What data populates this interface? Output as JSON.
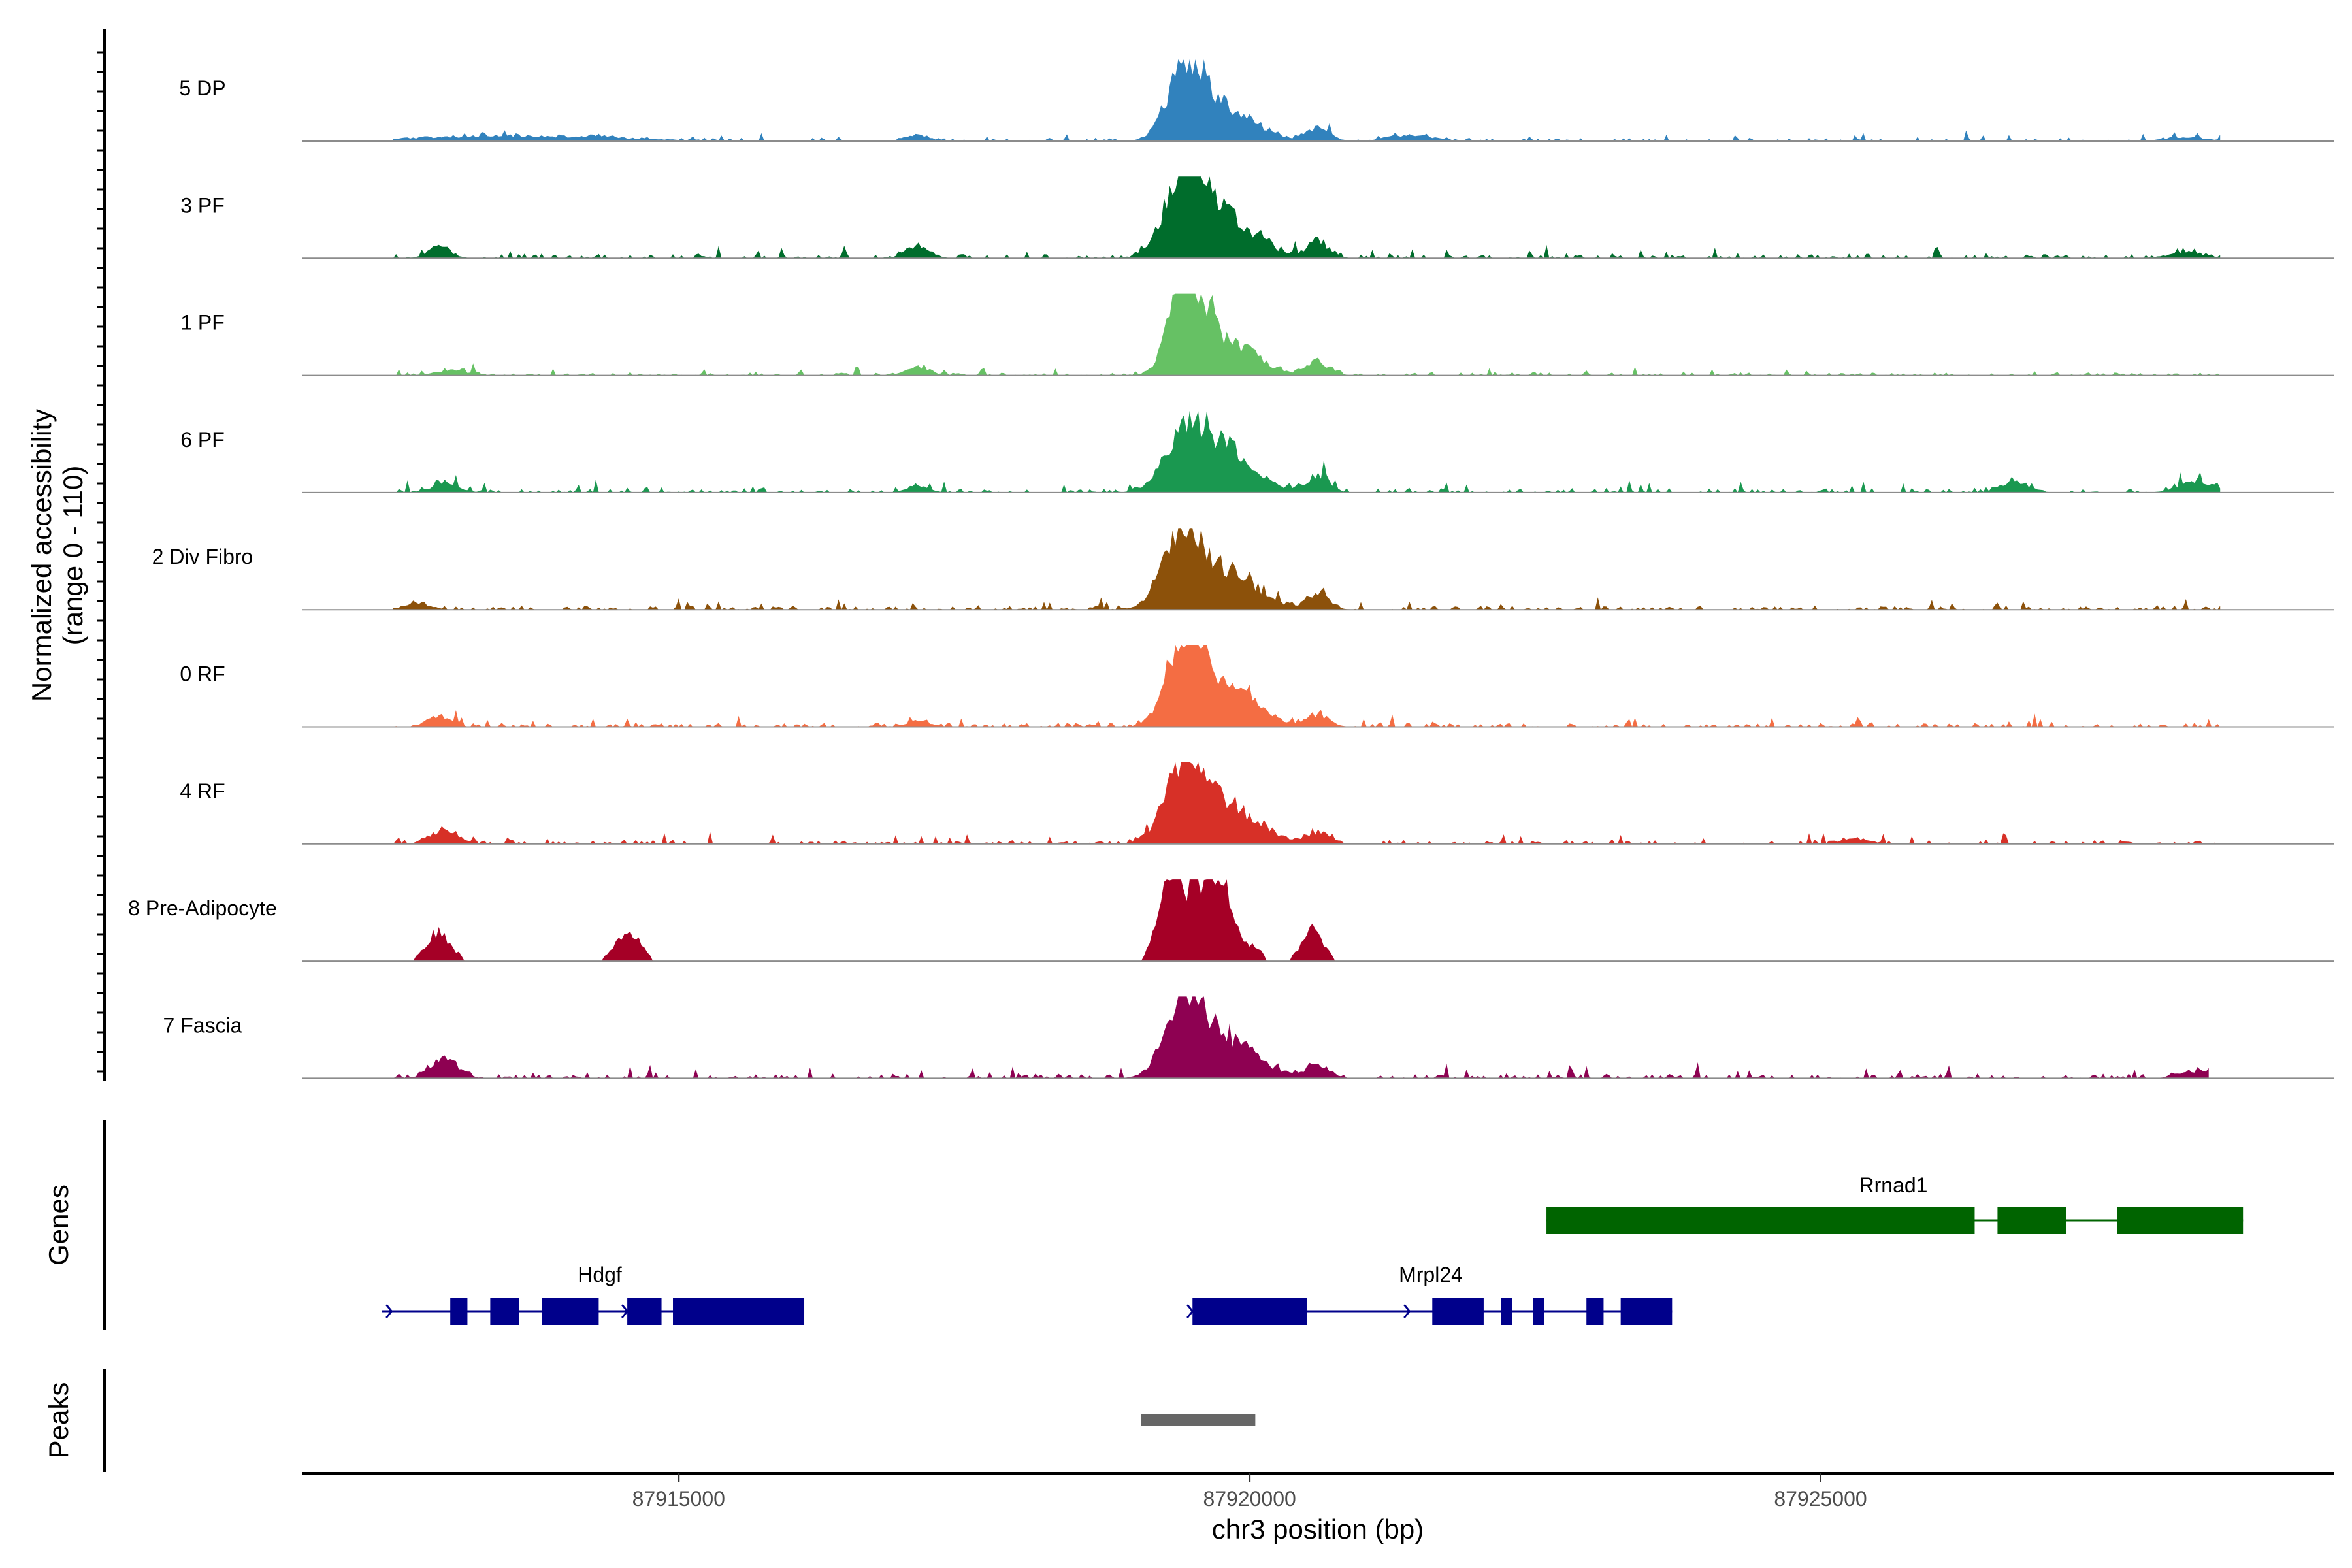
{
  "chart_data": {
    "type": "area",
    "chromosome": "chr3",
    "xlabel": "chr3 position (bp)",
    "xlim": [
      87911700,
      87929500
    ],
    "x_ticks": [
      87915000,
      87920000,
      87925000
    ],
    "x_tick_labels": [
      "87915000",
      "87920000",
      "87925000"
    ],
    "ylabel_line1": "Normalized accessibility",
    "ylabel_line2": "(range 0 - 110)",
    "ylim": [
      0,
      110
    ],
    "genes_label": "Genes",
    "peaks_label": "Peaks",
    "tracks": [
      {
        "name": "5 DP",
        "color": "#3182bd",
        "peaks": [
          [
            87919450,
            100,
            160
          ],
          [
            87919800,
            40,
            250
          ],
          [
            87920600,
            18,
            100
          ],
          [
            87913600,
            7,
            900
          ],
          [
            87917100,
            9,
            100
          ],
          [
            87921400,
            8,
            200
          ],
          [
            87928200,
            5,
            200
          ]
        ],
        "noise": 4,
        "range": [
          87912500,
          87928500
        ]
      },
      {
        "name": "3 PF",
        "color": "#006d2c",
        "peaks": [
          [
            87919450,
            120,
            180
          ],
          [
            87919850,
            45,
            250
          ],
          [
            87920600,
            22,
            100
          ],
          [
            87912900,
            16,
            100
          ],
          [
            87917100,
            18,
            100
          ],
          [
            87928200,
            8,
            150
          ]
        ],
        "noise": 6,
        "range": [
          87912500,
          87928500
        ]
      },
      {
        "name": "1 PF",
        "color": "#66c164",
        "peaks": [
          [
            87919450,
            130,
            140
          ],
          [
            87919800,
            45,
            250
          ],
          [
            87920600,
            18,
            100
          ],
          [
            87917100,
            12,
            100
          ],
          [
            87913000,
            6,
            150
          ]
        ],
        "noise": 4,
        "range": [
          87912500,
          87928500
        ]
      },
      {
        "name": "6 PF",
        "color": "#1a9850",
        "peaks": [
          [
            87919450,
            80,
            180
          ],
          [
            87919800,
            50,
            250
          ],
          [
            87920600,
            22,
            100
          ],
          [
            87912950,
            12,
            120
          ],
          [
            87926700,
            14,
            120
          ],
          [
            87928300,
            16,
            150
          ],
          [
            87917100,
            8,
            100
          ]
        ],
        "noise": 6,
        "range": [
          87912500,
          87928500
        ]
      },
      {
        "name": "2 Div Fibro",
        "color": "#8c510a",
        "peaks": [
          [
            87919400,
            110,
            160
          ],
          [
            87919800,
            50,
            250
          ],
          [
            87920600,
            22,
            100
          ],
          [
            87912700,
            8,
            120
          ]
        ],
        "noise": 5,
        "range": [
          87912500,
          87928500
        ]
      },
      {
        "name": "0 RF",
        "color": "#f46d43",
        "peaks": [
          [
            87919450,
            125,
            160
          ],
          [
            87919850,
            45,
            250
          ],
          [
            87920600,
            15,
            100
          ],
          [
            87912900,
            15,
            100
          ],
          [
            87917100,
            8,
            100
          ]
        ],
        "noise": 5,
        "range": [
          87912500,
          87928500
        ]
      },
      {
        "name": "4 RF",
        "color": "#d73027",
        "peaks": [
          [
            87919450,
            105,
            180
          ],
          [
            87919850,
            45,
            250
          ],
          [
            87920600,
            15,
            100
          ],
          [
            87912950,
            18,
            120
          ],
          [
            87925300,
            8,
            120
          ]
        ],
        "noise": 5,
        "range": [
          87912500,
          87928500
        ]
      },
      {
        "name": "8 Pre-Adipocyte",
        "color": "#a50026",
        "peaks": [
          [
            87919330,
            125,
            110
          ],
          [
            87919760,
            115,
            110
          ],
          [
            87919550,
            70,
            80
          ],
          [
            87920550,
            45,
            90
          ],
          [
            87912900,
            38,
            110
          ],
          [
            87914550,
            42,
            110
          ],
          [
            87920050,
            18,
            60
          ]
        ],
        "noise": 0,
        "range": [
          87912500,
          87925600
        ]
      },
      {
        "name": "7 Fascia",
        "color": "#8e0152",
        "peaks": [
          [
            87919450,
            110,
            170
          ],
          [
            87919850,
            45,
            250
          ],
          [
            87920600,
            18,
            100
          ],
          [
            87912950,
            25,
            120
          ],
          [
            87928300,
            10,
            150
          ]
        ],
        "noise": 6,
        "range": [
          87912500,
          87928400
        ]
      }
    ],
    "genes": [
      {
        "name": "Hdgf",
        "color": "#00008b",
        "start": 87912400,
        "end": 87916100,
        "strand": "+",
        "exons": [
          [
            87913000,
            87913150
          ],
          [
            87913350,
            87913600
          ],
          [
            87913800,
            87914300
          ],
          [
            87914550,
            87914850
          ],
          [
            87914950,
            87916100
          ]
        ]
      },
      {
        "name": "Mrpl24",
        "color": "#00008b",
        "start": 87919500,
        "end": 87923700,
        "strand": "+",
        "exons": [
          [
            87919500,
            87920500
          ],
          [
            87921600,
            87922050
          ],
          [
            87922200,
            87922300
          ],
          [
            87922480,
            87922580
          ],
          [
            87922950,
            87923100
          ],
          [
            87923250,
            87923700
          ]
        ]
      },
      {
        "name": "Rrnad1",
        "color": "#006400",
        "start": 87922600,
        "end": 87928700,
        "strand": "",
        "exons": [
          [
            87922600,
            87926350
          ],
          [
            87926550,
            87927150
          ],
          [
            87927600,
            87928700
          ]
        ]
      }
    ],
    "peaks": [
      {
        "start": 87919050,
        "end": 87920050,
        "color": "#666666"
      }
    ]
  }
}
